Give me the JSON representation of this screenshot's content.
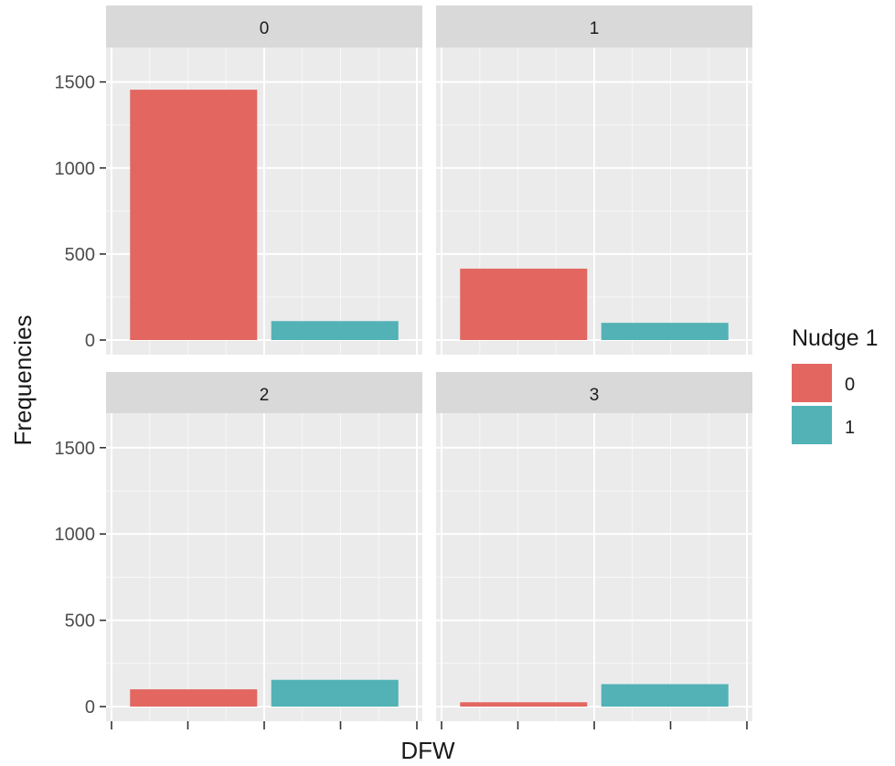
{
  "chart_data": {
    "type": "bar",
    "xlabel": "DFW",
    "ylabel": "Frequencies",
    "ylim": [
      0,
      1700
    ],
    "yticks": [
      0,
      500,
      1000,
      1500
    ],
    "grid": true,
    "legend": {
      "title": "Nudge 1",
      "placement": "right",
      "entries": [
        {
          "label": "0",
          "color": "#E36660"
        },
        {
          "label": "1",
          "color": "#52B2B6"
        }
      ]
    },
    "colors": {
      "panel_bg": "#EBEBEB",
      "strip_bg": "#D9D9D9",
      "grid": "#FFFFFF",
      "tick": "#333333",
      "text": "#1A1A1A",
      "axis_text": "#4D4D4D"
    },
    "panels": [
      {
        "label": "0",
        "series": [
          {
            "nudge": "0",
            "value": 1455
          },
          {
            "nudge": "1",
            "value": 110
          }
        ]
      },
      {
        "label": "1",
        "series": [
          {
            "nudge": "0",
            "value": 415
          },
          {
            "nudge": "1",
            "value": 100
          }
        ]
      },
      {
        "label": "2",
        "series": [
          {
            "nudge": "0",
            "value": 100
          },
          {
            "nudge": "1",
            "value": 155
          }
        ]
      },
      {
        "label": "3",
        "series": [
          {
            "nudge": "0",
            "value": 25
          },
          {
            "nudge": "1",
            "value": 130
          }
        ]
      }
    ]
  }
}
